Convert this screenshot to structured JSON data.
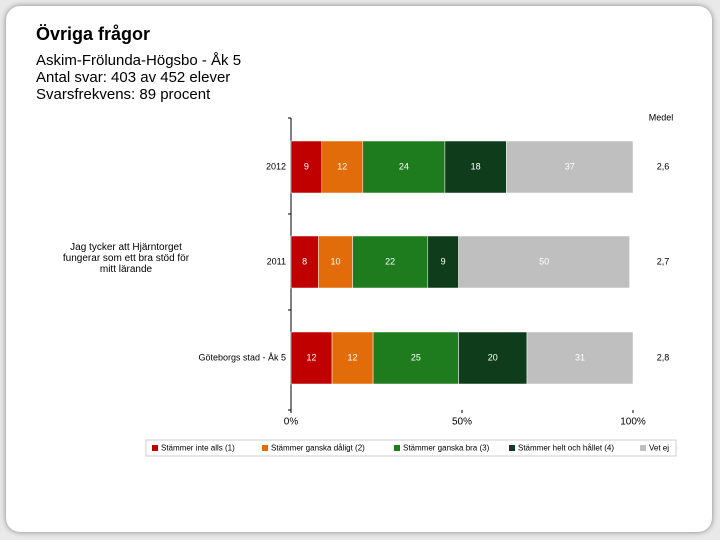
{
  "header": {
    "title": "Övriga frågor",
    "lines": [
      "Askim-Frölunda-Högsbo - Åk 5",
      "Antal svar: 403 av 452 elever",
      "Svarsfrekvens: 89 procent"
    ]
  },
  "chart_data": {
    "type": "bar",
    "orientation": "horizontal",
    "stacked": true,
    "question": "Jag tycker att Hjärntorget fungerar som ett bra stöd för mitt lärande",
    "categories": [
      "2012",
      "2011",
      "Göteborgs stad - Åk 5"
    ],
    "series": [
      {
        "name": "Stämmer inte alls (1)",
        "color": "#c00000",
        "values": [
          9,
          8,
          12
        ]
      },
      {
        "name": "Stämmer ganska dåligt (2)",
        "color": "#e36c0a",
        "values": [
          12,
          10,
          12
        ]
      },
      {
        "name": "Stämmer ganska bra (3)",
        "color": "#1e7b1e",
        "values": [
          24,
          22,
          25
        ]
      },
      {
        "name": "Stämmer helt och hållet (4)",
        "color": "#0f3d1c",
        "values": [
          18,
          9,
          20
        ]
      },
      {
        "name": "Vet ej",
        "color": "#bfbfbf",
        "values": [
          37,
          50,
          31
        ]
      }
    ],
    "xlim": [
      0,
      100
    ],
    "xticks": [
      {
        "value": 0,
        "label": "0%"
      },
      {
        "value": 50,
        "label": "50%"
      },
      {
        "value": 100,
        "label": "100%"
      }
    ],
    "mean_title": "Medel",
    "mean_values": [
      2.6,
      2.7,
      2.8
    ],
    "mean_value_labels": [
      "2,6",
      "2,7",
      "2,8"
    ]
  }
}
